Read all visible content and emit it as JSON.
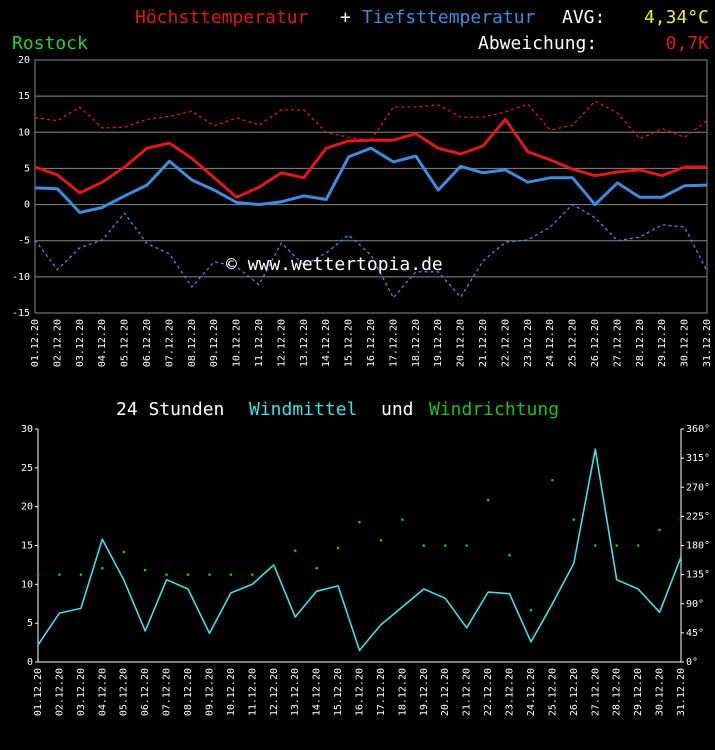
{
  "chart_data": [
    {
      "type": "line",
      "title_joiner": "+",
      "avg_label": "AVG:",
      "avg_value": "4,34°C",
      "station": "Rostock",
      "deviation_label": "Abweichung:",
      "deviation_value": "0,7K",
      "watermark": "© www.wettertopia.de",
      "categories": [
        "01.12.20",
        "02.12.20",
        "03.12.20",
        "04.12.20",
        "05.12.20",
        "06.12.20",
        "07.12.20",
        "08.12.20",
        "09.12.20",
        "10.12.20",
        "11.12.20",
        "12.12.20",
        "13.12.20",
        "14.12.20",
        "15.12.20",
        "16.12.20",
        "17.12.20",
        "18.12.20",
        "19.12.20",
        "20.12.20",
        "21.12.20",
        "22.12.20",
        "23.12.20",
        "24.12.20",
        "25.12.20",
        "26.12.20",
        "27.12.20",
        "28.12.20",
        "29.12.20",
        "30.12.20",
        "31.12.20"
      ],
      "series": [
        {
          "color": "#e01818",
          "dashed": true,
          "values": [
            12.0,
            11.6,
            13.5,
            10.6,
            10.7,
            11.8,
            12.2,
            12.9,
            10.9,
            12.0,
            11.0,
            13.1,
            13.1,
            10.0,
            9.3,
            8.9,
            13.5,
            13.5,
            13.8,
            12.1,
            12.1,
            12.8,
            13.9,
            10.3,
            11.0,
            14.3,
            12.7,
            9.1,
            10.5,
            9.3,
            11.6
          ]
        },
        {
          "color": "#3c8ce0",
          "dashed": true,
          "values": [
            -4.9,
            -9.0,
            -6.0,
            -4.9,
            -1.2,
            -5.4,
            -6.8,
            -11.4,
            -7.9,
            -8.6,
            -11.1,
            -5.3,
            -8.4,
            -6.7,
            -4.2,
            -7.0,
            -12.9,
            -9.3,
            -9.3,
            -12.8,
            -7.8,
            -5.2,
            -4.9,
            -3.1,
            0.0,
            -1.8,
            -5.0,
            -4.5,
            -2.8,
            -3.1,
            -9.2
          ]
        },
        {
          "name": "Höchsttemperatur",
          "color": "#e01818",
          "dashed": false,
          "values": [
            5.2,
            4.1,
            1.6,
            3.1,
            5.2,
            7.8,
            8.5,
            6.4,
            3.7,
            1.0,
            2.4,
            4.4,
            3.7,
            7.8,
            8.8,
            8.9,
            8.9,
            9.8,
            7.8,
            7.0,
            8.1,
            11.8,
            7.3,
            6.2,
            4.9,
            4.0,
            4.5,
            4.8,
            4.0,
            5.2,
            5.2
          ]
        },
        {
          "name": "Tiefsttemperatur",
          "color": "#3c8ce0",
          "dashed": false,
          "values": [
            2.3,
            2.2,
            -1.1,
            -0.4,
            1.2,
            2.7,
            6.0,
            3.4,
            2.0,
            0.3,
            0.0,
            0.4,
            1.2,
            0.7,
            6.6,
            7.8,
            5.9,
            6.7,
            2.0,
            5.3,
            4.4,
            4.8,
            3.1,
            3.7,
            3.7,
            0.0,
            3.0,
            1.0,
            1.0,
            2.6,
            2.7
          ]
        }
      ],
      "ylim": [
        -15,
        20
      ],
      "yticks": [
        -15,
        -10,
        -5,
        0,
        5,
        10,
        15,
        20
      ],
      "grid": true
    },
    {
      "type": "line",
      "title_prefix": "24 Stunden",
      "title_joiner": "und",
      "categories": [
        "01.12.20",
        "02.12.20",
        "03.12.20",
        "04.12.20",
        "05.12.20",
        "06.12.20",
        "07.12.20",
        "08.12.20",
        "09.12.20",
        "10.12.20",
        "11.12.20",
        "12.12.20",
        "13.12.20",
        "14.12.20",
        "15.12.20",
        "16.12.20",
        "17.12.20",
        "18.12.20",
        "19.12.20",
        "20.12.20",
        "21.12.20",
        "22.12.20",
        "23.12.20",
        "24.12.20",
        "25.12.20",
        "26.12.20",
        "27.12.20",
        "28.12.20",
        "29.12.20",
        "30.12.20",
        "31.12.20"
      ],
      "series": [
        {
          "name": "Windmittel",
          "color": "#40e0e8",
          "values": [
            2.2,
            6.3,
            6.9,
            15.8,
            10.6,
            4.0,
            10.6,
            9.4,
            3.7,
            8.9,
            10.0,
            12.5,
            5.8,
            9.1,
            9.8,
            1.5,
            4.8,
            7.1,
            9.4,
            8.2,
            4.4,
            9.0,
            8.8,
            2.6,
            7.5,
            12.7,
            27.4,
            10.6,
            9.4,
            6.4,
            13.5
          ]
        },
        {
          "name": "Windrichtung",
          "color": "#20c020",
          "axis": "y2",
          "dots": true,
          "values": [
            135,
            135,
            135,
            145,
            170,
            142,
            135,
            135,
            135,
            135,
            135,
            148,
            172,
            145,
            176,
            216,
            188,
            220,
            180,
            180,
            180,
            250,
            165,
            80,
            281,
            220,
            180,
            180,
            180,
            204,
            220
          ]
        }
      ],
      "ylim": [
        0,
        30
      ],
      "yticks": [
        0,
        5,
        10,
        15,
        20,
        25,
        30
      ],
      "y2lim": [
        0,
        360
      ],
      "y2ticks": [
        {
          "value": 0,
          "label": "0°"
        },
        {
          "value": 45,
          "label": "45°"
        },
        {
          "value": 90,
          "label": "90°"
        },
        {
          "value": 135,
          "label": "135°"
        },
        {
          "value": 180,
          "label": "180°"
        },
        {
          "value": 225,
          "label": "225°"
        },
        {
          "value": 270,
          "label": "270°"
        },
        {
          "value": 315,
          "label": "315°"
        },
        {
          "value": 360,
          "label": "360°"
        }
      ],
      "grid": false
    }
  ]
}
